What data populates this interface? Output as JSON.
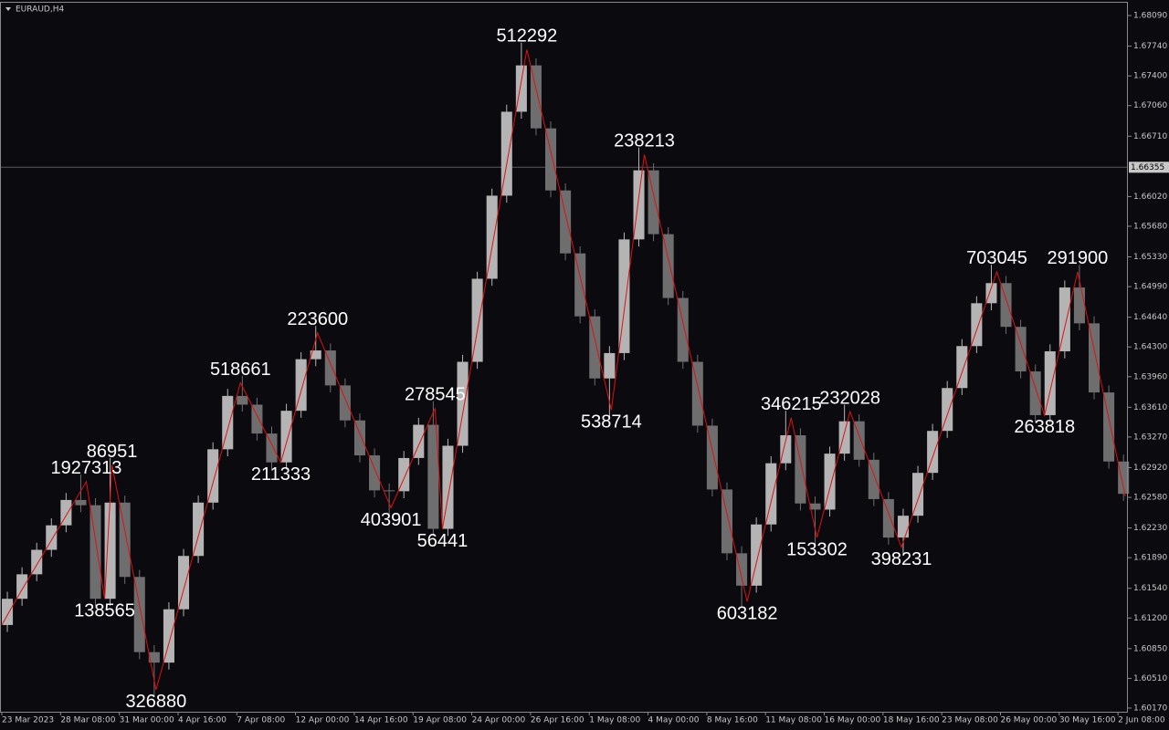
{
  "chart_data": {
    "type": "candlestick",
    "title": "EURAUD,H4",
    "xlim": [
      -0.5,
      306.7
    ],
    "ylim": [
      1.60128,
      1.68247
    ],
    "xticks": [
      {
        "value": 0,
        "label": "23 Mar 2023"
      },
      {
        "value": 16,
        "label": "28 Mar 08:00"
      },
      {
        "value": 32,
        "label": "31 Mar 00:00"
      },
      {
        "value": 48,
        "label": "4 Apr 16:00"
      },
      {
        "value": 64,
        "label": "7 Apr 08:00"
      },
      {
        "value": 80,
        "label": "12 Apr 00:00"
      },
      {
        "value": 96,
        "label": "14 Apr 16:00"
      },
      {
        "value": 112,
        "label": "19 Apr 08:00"
      },
      {
        "value": 128,
        "label": "24 Apr 00:00"
      },
      {
        "value": 144,
        "label": "26 Apr 16:00"
      },
      {
        "value": 160,
        "label": "1 May 08:00"
      },
      {
        "value": 176,
        "label": "4 May 00:00"
      },
      {
        "value": 192,
        "label": "8 May 16:00"
      },
      {
        "value": 208,
        "label": "11 May 08:00"
      },
      {
        "value": 224,
        "label": "16 May 00:00"
      },
      {
        "value": 240,
        "label": "18 May 16:00"
      },
      {
        "value": 256,
        "label": "23 May 08:00"
      },
      {
        "value": 272,
        "label": "26 May 00:00"
      },
      {
        "value": 288,
        "label": "30 May 16:00"
      },
      {
        "value": 304,
        "label": "2 Jun 08:00"
      }
    ],
    "yticks": [
      {
        "value": 1.6809,
        "label": "1.68090"
      },
      {
        "value": 1.6774,
        "label": "1.67740"
      },
      {
        "value": 1.674,
        "label": "1.67400"
      },
      {
        "value": 1.6706,
        "label": "1.67060"
      },
      {
        "value": 1.6671,
        "label": "1.66710"
      },
      {
        "value": 1.6602,
        "label": "1.66020"
      },
      {
        "value": 1.6568,
        "label": "1.65680"
      },
      {
        "value": 1.6533,
        "label": "1.65330"
      },
      {
        "value": 1.6499,
        "label": "1.64990"
      },
      {
        "value": 1.6464,
        "label": "1.64640"
      },
      {
        "value": 1.643,
        "label": "1.64300"
      },
      {
        "value": 1.6396,
        "label": "1.63960"
      },
      {
        "value": 1.6361,
        "label": "1.63610"
      },
      {
        "value": 1.6327,
        "label": "1.63270"
      },
      {
        "value": 1.6292,
        "label": "1.62920"
      },
      {
        "value": 1.6258,
        "label": "1.62580"
      },
      {
        "value": 1.6223,
        "label": "1.62230"
      },
      {
        "value": 1.6189,
        "label": "1.61890"
      },
      {
        "value": 1.6154,
        "label": "1.61540"
      },
      {
        "value": 1.612,
        "label": "1.61200"
      },
      {
        "value": 1.6085,
        "label": "1.60850"
      },
      {
        "value": 1.6051,
        "label": "1.60510"
      },
      {
        "value": 1.6017,
        "label": "1.60170"
      }
    ],
    "price_line": {
      "value": 1.66355,
      "label": "1.66355",
      "color": "#5a5a5a"
    },
    "candles": {
      "up_color": "#b4b4b4",
      "down_color": "#6e6e6e",
      "x": [
        0,
        4,
        8,
        12,
        16,
        20,
        24,
        28,
        32,
        36,
        40,
        44,
        48,
        52,
        56,
        60,
        64,
        68,
        72,
        76,
        80,
        84,
        88,
        92,
        96,
        100,
        104,
        108,
        112,
        116,
        120,
        124,
        128,
        132,
        136,
        140,
        144,
        148,
        152,
        156,
        160,
        164,
        168,
        172,
        176,
        180,
        184,
        188,
        192,
        196,
        200,
        204,
        208,
        212,
        216,
        220,
        224,
        228,
        232,
        236,
        240,
        244,
        248,
        252,
        256,
        260,
        264,
        268,
        272,
        276,
        280,
        284,
        288,
        292,
        296,
        300,
        304
      ],
      "open": [
        1.6112,
        1.6142,
        1.617,
        1.6198,
        1.6226,
        1.6255,
        1.6249,
        1.6142,
        1.6252,
        1.6167,
        1.6081,
        1.6069,
        1.613,
        1.6191,
        1.6252,
        1.6313,
        1.6374,
        1.6364,
        1.6331,
        1.6298,
        1.6357,
        1.6416,
        1.6426,
        1.6386,
        1.6346,
        1.6306,
        1.6266,
        1.6265,
        1.6303,
        1.6341,
        1.6222,
        1.6317,
        1.6413,
        1.6508,
        1.6603,
        1.6699,
        1.6752,
        1.668,
        1.6609,
        1.6537,
        1.6465,
        1.6394,
        1.6423,
        1.6553,
        1.6632,
        1.6559,
        1.6486,
        1.6413,
        1.634,
        1.6267,
        1.6194,
        1.6157,
        1.6227,
        1.6297,
        1.6329,
        1.6251,
        1.6244,
        1.6308,
        1.6345,
        1.6301,
        1.6256,
        1.6212,
        1.6237,
        1.6286,
        1.6334,
        1.6383,
        1.6431,
        1.648,
        1.6503,
        1.6453,
        1.6402,
        1.6352,
        1.6425,
        1.6498,
        1.6457,
        1.6378,
        1.6299
      ],
      "high": [
        1.615,
        1.6178,
        1.6206,
        1.6234,
        1.6263,
        1.6284,
        1.6257,
        1.6303,
        1.626,
        1.6175,
        1.6089,
        1.6138,
        1.6199,
        1.626,
        1.6321,
        1.6382,
        1.6397,
        1.6372,
        1.6339,
        1.6365,
        1.6424,
        1.6454,
        1.6434,
        1.6394,
        1.6354,
        1.6314,
        1.6274,
        1.6311,
        1.6349,
        1.6368,
        1.6325,
        1.6421,
        1.6516,
        1.6611,
        1.6707,
        1.6778,
        1.676,
        1.6688,
        1.6617,
        1.6545,
        1.6473,
        1.6431,
        1.6561,
        1.6658,
        1.664,
        1.6567,
        1.6494,
        1.6421,
        1.6348,
        1.6275,
        1.6202,
        1.6235,
        1.6305,
        1.6357,
        1.6337,
        1.6259,
        1.6316,
        1.6364,
        1.6353,
        1.6309,
        1.6264,
        1.6245,
        1.6294,
        1.6342,
        1.6391,
        1.6439,
        1.6488,
        1.6524,
        1.6511,
        1.6461,
        1.641,
        1.6433,
        1.6506,
        1.6524,
        1.6465,
        1.6386,
        1.6307
      ],
      "low": [
        1.6104,
        1.6134,
        1.6162,
        1.619,
        1.6218,
        1.6241,
        1.6134,
        1.6134,
        1.6159,
        1.6073,
        1.603,
        1.6061,
        1.6122,
        1.6183,
        1.6244,
        1.6305,
        1.6356,
        1.6323,
        1.629,
        1.629,
        1.6349,
        1.6408,
        1.6378,
        1.6338,
        1.6298,
        1.6258,
        1.6238,
        1.6257,
        1.6295,
        1.6214,
        1.6214,
        1.6309,
        1.6405,
        1.65,
        1.6595,
        1.6691,
        1.6672,
        1.6601,
        1.6529,
        1.6457,
        1.6386,
        1.635,
        1.6415,
        1.6545,
        1.6551,
        1.6478,
        1.6405,
        1.6332,
        1.6259,
        1.6186,
        1.6131,
        1.6149,
        1.6219,
        1.6289,
        1.6243,
        1.6204,
        1.6236,
        1.63,
        1.6293,
        1.6248,
        1.6204,
        1.6193,
        1.6229,
        1.6278,
        1.6326,
        1.6375,
        1.6423,
        1.6472,
        1.6445,
        1.6394,
        1.6344,
        1.6344,
        1.6417,
        1.6449,
        1.637,
        1.6291,
        1.6254
      ],
      "close": [
        1.6142,
        1.617,
        1.6198,
        1.6226,
        1.6255,
        1.6249,
        1.6142,
        1.6252,
        1.6167,
        1.6081,
        1.6069,
        1.613,
        1.6191,
        1.6252,
        1.6313,
        1.6374,
        1.6364,
        1.6331,
        1.6298,
        1.6357,
        1.6416,
        1.6426,
        1.6386,
        1.6346,
        1.6306,
        1.6266,
        1.6265,
        1.6303,
        1.6341,
        1.6222,
        1.6317,
        1.6413,
        1.6508,
        1.6603,
        1.6699,
        1.6752,
        1.668,
        1.6609,
        1.6537,
        1.6465,
        1.6394,
        1.6423,
        1.6553,
        1.6632,
        1.6559,
        1.6486,
        1.6413,
        1.634,
        1.6267,
        1.6194,
        1.6157,
        1.6227,
        1.6297,
        1.6329,
        1.6251,
        1.6244,
        1.6308,
        1.6345,
        1.6301,
        1.6256,
        1.6212,
        1.6237,
        1.6286,
        1.6334,
        1.6383,
        1.6431,
        1.648,
        1.6503,
        1.6453,
        1.6402,
        1.6352,
        1.6425,
        1.6498,
        1.6457,
        1.6378,
        1.6299,
        1.6262
      ]
    },
    "zigzag": {
      "color": "#e01010",
      "x": [
        0,
        4,
        23,
        28,
        30,
        42,
        65,
        76,
        86,
        106,
        118,
        120,
        143,
        166,
        175,
        203,
        215,
        222,
        231,
        245,
        271,
        284,
        293,
        306
      ],
      "values": [
        1.6112,
        1.6142,
        1.6276,
        1.6142,
        1.6295,
        1.6038,
        1.6389,
        1.6298,
        1.6446,
        1.6246,
        1.636,
        1.6222,
        1.677,
        1.6358,
        1.665,
        1.6139,
        1.6349,
        1.6212,
        1.6356,
        1.6201,
        1.6516,
        1.6352,
        1.6516,
        1.6259
      ],
      "labels": [
        null,
        null,
        "1927313",
        "138565",
        "86951",
        "326880",
        "518661",
        "211333",
        "223600",
        "403901",
        "278545",
        "56441",
        "512292",
        "538714",
        "238213",
        "603182",
        "346215",
        "153302",
        "232028",
        "398231",
        "703045",
        "263818",
        "291900",
        null
      ]
    }
  }
}
